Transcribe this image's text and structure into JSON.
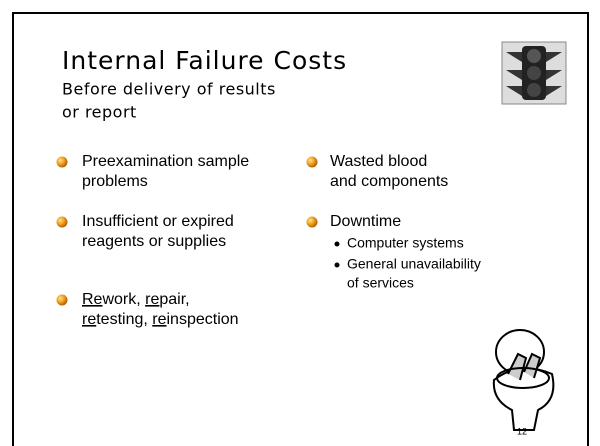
{
  "title": "Internal Failure Costs",
  "subtitle": [
    "Before delivery of results",
    "or report"
  ],
  "left_bullets": [
    {
      "lines": [
        "Preexamination sample",
        "problems"
      ]
    },
    {
      "lines": [
        "Insufficient or expired",
        "reagents or supplies"
      ]
    },
    {
      "lines": [
        [
          {
            "text": "Re",
            "underline": true
          },
          "work, ",
          {
            "text": "re",
            "underline": true
          },
          "pair,"
        ],
        [
          {
            "text": "re",
            "underline": true
          },
          "testing, ",
          {
            "text": "re",
            "underline": true
          },
          "inspection"
        ]
      ]
    }
  ],
  "right_bullets": [
    {
      "lines": [
        "Wasted blood",
        "and components"
      ]
    },
    {
      "lines": [
        "Downtime"
      ],
      "sub": [
        [
          "Computer systems"
        ],
        [
          "General unavailability",
          "of services"
        ]
      ]
    }
  ],
  "page_number": 12
}
